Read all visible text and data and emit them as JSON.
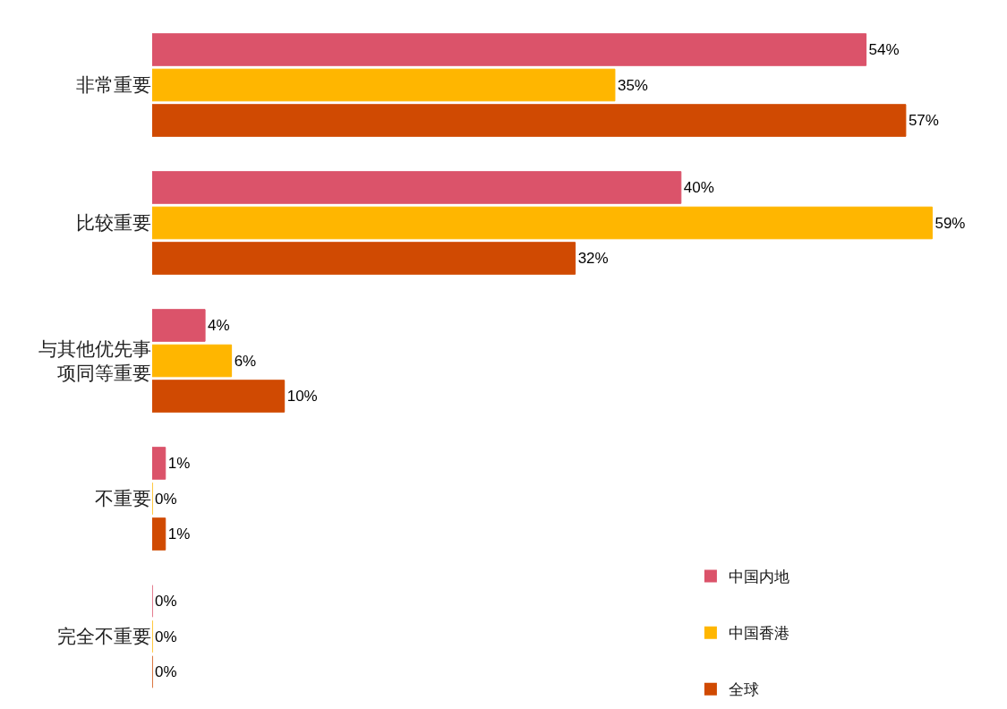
{
  "chart_data": {
    "type": "bar",
    "orientation": "horizontal",
    "tick_labels": "y",
    "legend": "bottom right",
    "categories": [
      "非常重要",
      "比较重要",
      "与其他优先事项同等重要",
      "不重要",
      "完全不重要"
    ],
    "series": [
      {
        "name": "中国内地",
        "color": "#db536a",
        "values": [
          54,
          40,
          4,
          1,
          0
        ],
        "value_labels": [
          "54%",
          "40%",
          "4%",
          "1%",
          "0%"
        ]
      },
      {
        "name": "中国香港",
        "color": "#ffb600",
        "values": [
          35,
          59,
          6,
          0,
          0
        ],
        "value_labels": [
          "35%",
          "59%",
          "6%",
          "0%",
          "0%"
        ]
      },
      {
        "name": "全球",
        "color": "#d04a02",
        "values": [
          57,
          32,
          10,
          1,
          0
        ],
        "value_labels": [
          "57%",
          "32%",
          "10%",
          "1%",
          "0%"
        ]
      }
    ]
  }
}
